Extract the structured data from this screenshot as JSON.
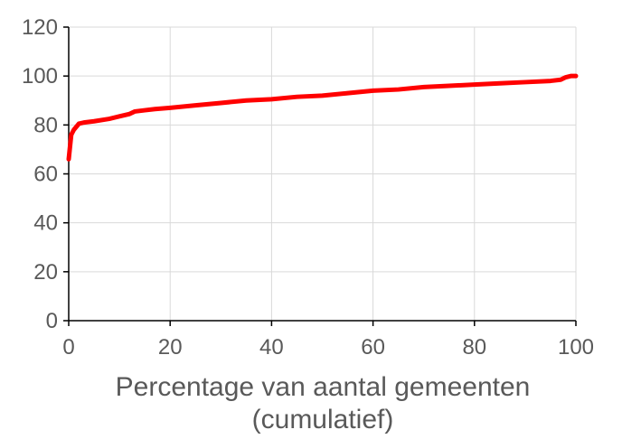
{
  "chart_data": {
    "type": "line",
    "title": "",
    "xlabel_line1": "Percentage van aantal gemeenten",
    "xlabel_line2": "(cumulatief)",
    "ylabel": "",
    "xlim": [
      0,
      100
    ],
    "ylim": [
      0,
      120
    ],
    "x_ticks": [
      "0",
      "20",
      "40",
      "60",
      "80",
      "100"
    ],
    "y_ticks": [
      "0",
      "20",
      "40",
      "60",
      "80",
      "100",
      "120"
    ],
    "grid": true,
    "series": [
      {
        "color": "#ff0000",
        "x": [
          0,
          0.2,
          0.5,
          1,
          2,
          3,
          5,
          8,
          10,
          12,
          13,
          15,
          17,
          20,
          25,
          30,
          35,
          40,
          45,
          50,
          55,
          60,
          65,
          70,
          75,
          80,
          85,
          90,
          95,
          97,
          98,
          99,
          100
        ],
        "y": [
          66,
          70,
          76,
          78,
          80.5,
          81,
          81.5,
          82.5,
          83.5,
          84.5,
          85.5,
          86,
          86.5,
          87,
          88,
          89,
          90,
          90.5,
          91.5,
          92,
          93,
          94,
          94.5,
          95.5,
          96,
          96.5,
          97,
          97.5,
          98,
          98.5,
          99.5,
          100,
          100
        ]
      }
    ]
  }
}
